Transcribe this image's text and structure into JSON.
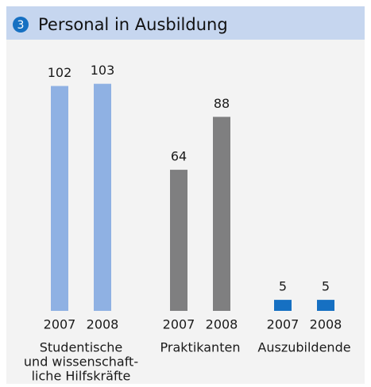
{
  "chart_data": {
    "type": "bar",
    "title": "Personal in Ausbildung",
    "number": "3",
    "groups": [
      {
        "label": [
          "Studentische",
          "und wissenschaft-",
          "liche Hilfskräfte"
        ],
        "color": "#8fb1e3",
        "categories": [
          "2007",
          "2008"
        ],
        "values": [
          102,
          103
        ]
      },
      {
        "label": [
          "Praktikanten"
        ],
        "color": "#7f7f80",
        "categories": [
          "2007",
          "2008"
        ],
        "values": [
          64,
          88
        ]
      },
      {
        "label": [
          "Auszubildende"
        ],
        "color": "#1670c2",
        "categories": [
          "2007",
          "2008"
        ],
        "values": [
          5,
          5
        ]
      }
    ]
  }
}
